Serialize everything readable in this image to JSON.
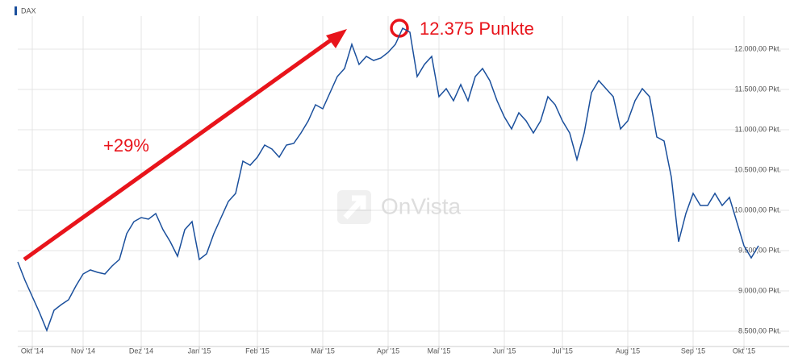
{
  "chart_data": {
    "type": "line",
    "categories": [
      null,
      null,
      "Okt '14",
      null,
      null,
      null,
      null,
      null,
      null,
      "Nov '14",
      null,
      null,
      null,
      null,
      null,
      null,
      null,
      "Dez '14",
      null,
      null,
      null,
      null,
      null,
      null,
      null,
      "Jan '15",
      null,
      null,
      null,
      null,
      null,
      null,
      null,
      "Feb '15",
      null,
      null,
      null,
      null,
      null,
      null,
      null,
      null,
      "Mär '15",
      null,
      null,
      null,
      null,
      null,
      null,
      null,
      null,
      "Apr '15",
      null,
      null,
      null,
      null,
      null,
      null,
      "Mai '15",
      null,
      null,
      null,
      null,
      null,
      null,
      null,
      null,
      "Jun '15",
      null,
      null,
      null,
      null,
      null,
      null,
      null,
      "Jul '15",
      null,
      null,
      null,
      null,
      null,
      null,
      null,
      null,
      "Aug '15",
      null,
      null,
      null,
      null,
      null,
      null,
      null,
      null,
      "Sep '15",
      null,
      null,
      null,
      null,
      null,
      null,
      "Okt '15",
      null,
      null
    ],
    "series": [
      {
        "name": "DAX",
        "color": "#1a4f9c",
        "values": [
          9360,
          9130,
          8930,
          8730,
          8510,
          8760,
          8830,
          8890,
          9060,
          9210,
          9260,
          9230,
          9210,
          9310,
          9390,
          9710,
          9860,
          9910,
          9890,
          9960,
          9760,
          9610,
          9430,
          9760,
          9860,
          9390,
          9460,
          9710,
          9910,
          10110,
          10210,
          10610,
          10560,
          10660,
          10810,
          10760,
          10660,
          10810,
          10830,
          10960,
          11110,
          11310,
          11260,
          11460,
          11660,
          11760,
          12060,
          11810,
          11910,
          11860,
          11890,
          11960,
          12060,
          12260,
          12210,
          11660,
          11810,
          11910,
          11410,
          11510,
          11360,
          11560,
          11360,
          11660,
          11760,
          11610,
          11360,
          11160,
          11010,
          11210,
          11110,
          10960,
          11110,
          11410,
          11310,
          11110,
          10960,
          10630,
          10960,
          11460,
          11610,
          11510,
          11410,
          11010,
          11110,
          11360,
          11510,
          11410,
          10910,
          10860,
          10410,
          9610,
          9960,
          10210,
          10060,
          10060,
          10210,
          10060,
          10160,
          9860,
          9560,
          9410,
          9560
        ]
      }
    ],
    "ylim": [
      8310,
      12410
    ],
    "yticks": [
      {
        "value": 8500,
        "label": "8.500,00 Pkt."
      },
      {
        "value": 9000,
        "label": "9.000,00 Pkt."
      },
      {
        "value": 9500,
        "label": "9.500,00 Pkt."
      },
      {
        "value": 10000,
        "label": "10.000,00 Pkt."
      },
      {
        "value": 10500,
        "label": "10.500,00 Pkt."
      },
      {
        "value": 11000,
        "label": "11.000,00 Pkt."
      },
      {
        "value": 11500,
        "label": "11.500,00 Pkt."
      },
      {
        "value": 12000,
        "label": "12.000,00 Pkt."
      }
    ],
    "grid": true,
    "annotations": [
      {
        "text": "12.375 Punkte",
        "color": "#e8141b"
      },
      {
        "text": "+29%",
        "color": "#e8141b"
      }
    ],
    "watermark": "OnVista"
  }
}
